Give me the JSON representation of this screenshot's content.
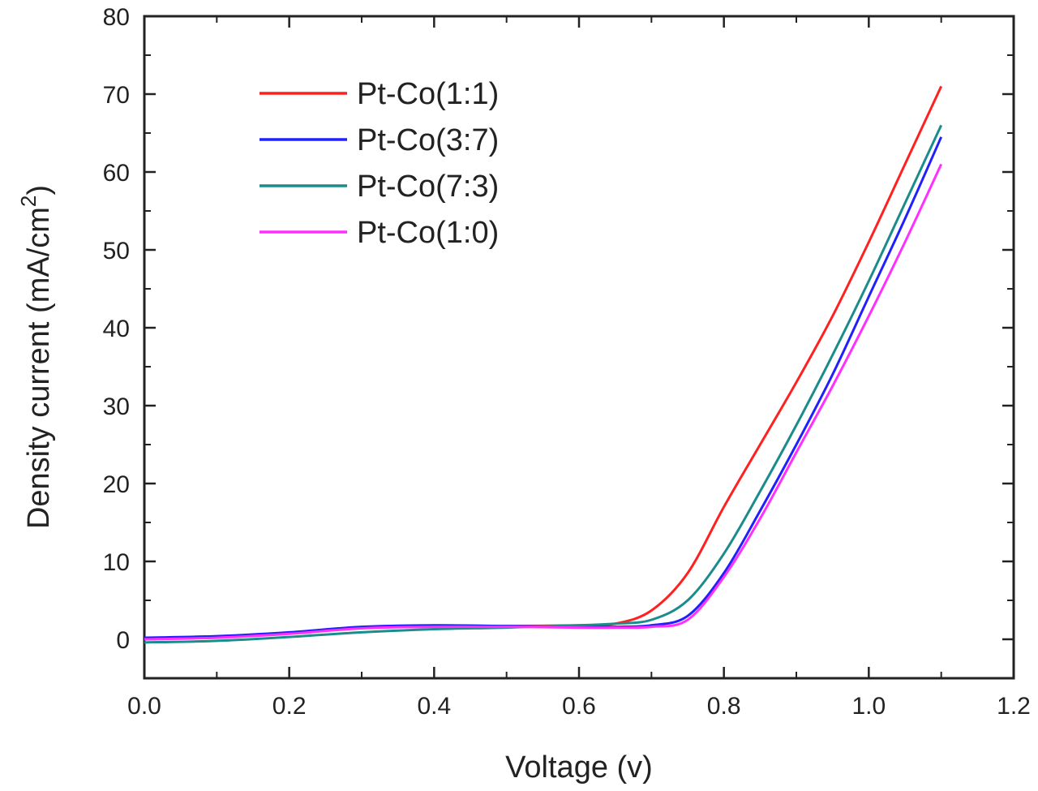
{
  "chart_data": {
    "type": "line",
    "xlabel": "Voltage (v)",
    "ylabel": "Density current (mA/cm",
    "ylabel_sup": "2",
    "ylabel_close": ")",
    "xlim": [
      0.0,
      1.2
    ],
    "ylim": [
      -5,
      80
    ],
    "x_ticks": [
      "0.0",
      "0.2",
      "0.4",
      "0.6",
      "0.8",
      "1.0",
      "1.2"
    ],
    "y_ticks": [
      "0",
      "10",
      "20",
      "30",
      "40",
      "50",
      "60",
      "70",
      "80"
    ],
    "grid": false,
    "legend_position": "top-left",
    "x": [
      0.0,
      0.1,
      0.2,
      0.3,
      0.4,
      0.5,
      0.6,
      0.65,
      0.7,
      0.75,
      0.8,
      0.85,
      0.9,
      0.95,
      1.0,
      1.05,
      1.1
    ],
    "series": [
      {
        "name": "Pt-Co(1:1)",
        "color": "#ff2020",
        "values": [
          0.1,
          0.3,
          0.8,
          1.5,
          1.7,
          1.7,
          1.8,
          2.0,
          3.7,
          8.5,
          17,
          25,
          33,
          41.5,
          51,
          61,
          71
        ]
      },
      {
        "name": "Pt-Co(3:7)",
        "color": "#2020ff",
        "values": [
          0.2,
          0.4,
          0.9,
          1.6,
          1.8,
          1.7,
          1.6,
          1.6,
          1.8,
          3.0,
          8.5,
          16.5,
          25,
          34,
          44,
          54,
          64.5
        ]
      },
      {
        "name": "Pt-Co(7:3)",
        "color": "#1a8c8c",
        "values": [
          -0.4,
          -0.2,
          0.3,
          0.9,
          1.3,
          1.5,
          1.8,
          2.0,
          2.5,
          5.0,
          11,
          19,
          27.5,
          36.5,
          46,
          56,
          66
        ]
      },
      {
        "name": "Pt-Co(1:0)",
        "color": "#ff30ff",
        "values": [
          0.0,
          0.2,
          0.7,
          1.4,
          1.6,
          1.6,
          1.5,
          1.5,
          1.6,
          2.5,
          8,
          15.5,
          24,
          32.5,
          41.5,
          51,
          61
        ]
      }
    ]
  }
}
